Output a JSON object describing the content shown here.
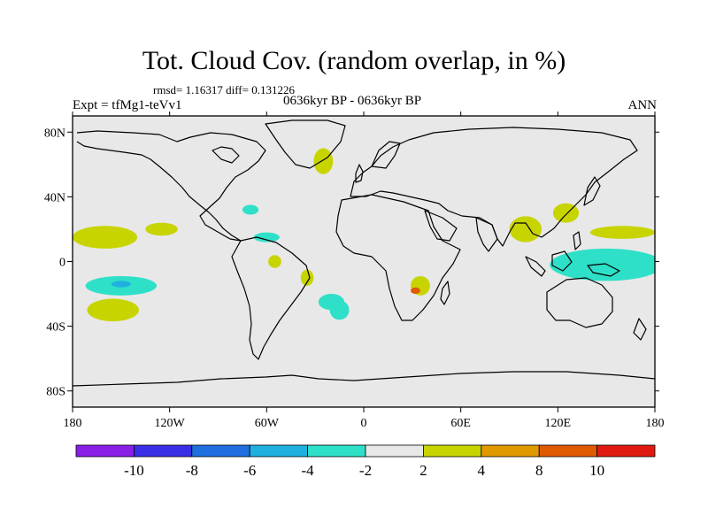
{
  "header": {
    "title": "Tot. Cloud Cov. (random overlap, in %)",
    "stats": "rmsd= 1.16317 diff= 0.131226",
    "experiment": "Expt = tfMg1-teVv1",
    "period": "0636kyr BP - 0636kyr BP",
    "season": "ANN"
  },
  "axes": {
    "lon_ticks": [
      {
        "value": -180,
        "label": "180"
      },
      {
        "value": -120,
        "label": "120W"
      },
      {
        "value": -60,
        "label": "60W"
      },
      {
        "value": 0,
        "label": "0"
      },
      {
        "value": 60,
        "label": "60E"
      },
      {
        "value": 120,
        "label": "120E"
      },
      {
        "value": 180,
        "label": "180"
      }
    ],
    "lat_ticks": [
      {
        "value": 80,
        "label": "80N"
      },
      {
        "value": 40,
        "label": "40N"
      },
      {
        "value": 0,
        "label": "0"
      },
      {
        "value": -40,
        "label": "40S"
      },
      {
        "value": -80,
        "label": "80S"
      }
    ],
    "lon_range": [
      -180,
      180
    ],
    "lat_range": [
      -90,
      90
    ]
  },
  "colorbar": {
    "colors": [
      "#8a1fe6",
      "#3a2ee6",
      "#1f6fe0",
      "#1fb0e0",
      "#2ee0c8",
      "#e8e8e8",
      "#c8d400",
      "#e09a00",
      "#e05a00",
      "#e01a10"
    ],
    "tick_labels": [
      {
        "boundary": 1,
        "label": "-10"
      },
      {
        "boundary": 2,
        "label": "-8"
      },
      {
        "boundary": 3,
        "label": "-6"
      },
      {
        "boundary": 4,
        "label": "-4"
      },
      {
        "boundary": 5,
        "label": "-2"
      },
      {
        "boundary": 6,
        "label": "2"
      },
      {
        "boundary": 7,
        "label": "4"
      },
      {
        "boundary": 8,
        "label": "8"
      },
      {
        "boundary": 9,
        "label": "10"
      }
    ]
  },
  "colors": {
    "background": "#e8e8e8",
    "positive_2_4": "#c8d400",
    "negative_2_4": "#2ee0c8",
    "negative_4_6": "#1fb0e0",
    "positive_4_8": "#e09a00",
    "positive_8_10": "#e05a00"
  },
  "anomalies": [
    {
      "level": "2-4",
      "lon": -160,
      "lat": 15,
      "rlon": 20,
      "rlat": 7
    },
    {
      "level": "2-4",
      "lon": -125,
      "lat": 20,
      "rlon": 10,
      "rlat": 4
    },
    {
      "level": "-2-4",
      "lon": -150,
      "lat": -15,
      "rlon": 22,
      "rlat": 6
    },
    {
      "level": "-4-6",
      "lon": -150,
      "lat": -14,
      "rlon": 6,
      "rlat": 2
    },
    {
      "level": "2-4",
      "lon": -155,
      "lat": -30,
      "rlon": 16,
      "rlat": 7
    },
    {
      "level": "-2-4",
      "lon": -20,
      "lat": -25,
      "rlon": 8,
      "rlat": 5
    },
    {
      "level": "-2-4",
      "lon": -15,
      "lat": -30,
      "rlon": 6,
      "rlat": 6
    },
    {
      "level": "2-4",
      "lon": -55,
      "lat": 0,
      "rlon": 4,
      "rlat": 4
    },
    {
      "level": "2-4",
      "lon": -35,
      "lat": -10,
      "rlon": 4,
      "rlat": 5
    },
    {
      "level": "2-4",
      "lon": -25,
      "lat": 62,
      "rlon": 6,
      "rlat": 8
    },
    {
      "level": "-2-4",
      "lon": -60,
      "lat": 15,
      "rlon": 8,
      "rlat": 3
    },
    {
      "level": "-2-4",
      "lon": -70,
      "lat": 32,
      "rlon": 5,
      "rlat": 3
    },
    {
      "level": "2-4",
      "lon": 35,
      "lat": -15,
      "rlon": 6,
      "rlat": 6
    },
    {
      "level": "8-10",
      "lon": 32,
      "lat": -18,
      "rlon": 3,
      "rlat": 2
    },
    {
      "level": "2-4",
      "lon": 100,
      "lat": 20,
      "rlon": 10,
      "rlat": 8
    },
    {
      "level": "2-4",
      "lon": 125,
      "lat": 30,
      "rlon": 8,
      "rlat": 6
    },
    {
      "level": "-4-6",
      "lon": 155,
      "lat": 0,
      "rlon": 28,
      "rlat": 7
    },
    {
      "level": "-2-4",
      "lon": 150,
      "lat": -2,
      "rlon": 35,
      "rlat": 10
    },
    {
      "level": "2-4",
      "lon": 160,
      "lat": 18,
      "rlon": 20,
      "rlat": 4
    }
  ]
}
